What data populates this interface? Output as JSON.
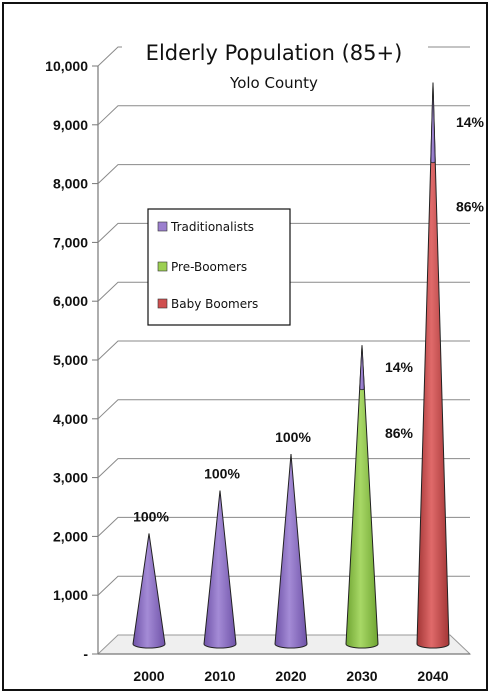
{
  "chart_data": {
    "type": "bar",
    "title": "Elderly Population (85+)",
    "subtitle": "Yolo County",
    "categories": [
      "2000",
      "2010",
      "2020",
      "2030",
      "2040"
    ],
    "series": [
      {
        "name": "Traditionalists",
        "color": "#9b7fce",
        "values": [
          2050,
          2780,
          3400,
          0,
          0
        ]
      },
      {
        "name": "Pre-Boomers",
        "color": "#9ccf52",
        "values": [
          0,
          0,
          0,
          4520,
          0
        ]
      },
      {
        "name": "Baby Boomers",
        "color": "#d05050",
        "values": [
          0,
          0,
          0,
          0,
          8380
        ]
      }
    ],
    "cap_values": [
      0,
      0,
      0,
      5250,
      9720
    ],
    "y_ticks": [
      "-",
      "1,000",
      "2,000",
      "3,000",
      "4,000",
      "5,000",
      "6,000",
      "7,000",
      "8,000",
      "9,000",
      "10,000"
    ],
    "ylim": [
      0,
      10000
    ],
    "grid": true,
    "legend_position": "left-middle",
    "data_labels": [
      {
        "category": "2000",
        "lines": [
          "100%"
        ]
      },
      {
        "category": "2010",
        "lines": [
          "100%"
        ]
      },
      {
        "category": "2020",
        "lines": [
          "100%"
        ]
      },
      {
        "category": "2030",
        "lines": [
          "14%",
          "86%"
        ]
      },
      {
        "category": "2040",
        "lines": [
          "14%",
          "86%"
        ]
      }
    ]
  }
}
